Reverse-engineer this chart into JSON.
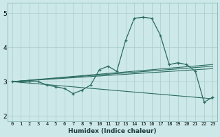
{
  "xlabel": "Humidex (Indice chaleur)",
  "ylabel": "",
  "bg_color": "#cce8e8",
  "line_color": "#2a6b5e",
  "grid_color": "#aacccc",
  "xlim": [
    -0.5,
    23.5
  ],
  "ylim": [
    1.85,
    5.3
  ],
  "yticks": [
    2,
    3,
    4,
    5
  ],
  "xticks": [
    0,
    1,
    2,
    3,
    4,
    5,
    6,
    7,
    8,
    9,
    10,
    11,
    12,
    13,
    14,
    15,
    16,
    17,
    18,
    19,
    20,
    21,
    22,
    23
  ],
  "line1_x": [
    0,
    1,
    2,
    3,
    4,
    5,
    6,
    7,
    8,
    9,
    10,
    11,
    12,
    13,
    14,
    15,
    16,
    17,
    18,
    19,
    20,
    21,
    22,
    23
  ],
  "line1_y": [
    3.0,
    3.0,
    3.0,
    3.0,
    2.9,
    2.85,
    2.8,
    2.65,
    2.75,
    2.9,
    3.35,
    3.45,
    3.3,
    4.2,
    4.85,
    4.88,
    4.85,
    4.35,
    3.5,
    3.55,
    3.5,
    3.3,
    2.4,
    2.55
  ],
  "line2_x": [
    0,
    23
  ],
  "line2_y": [
    3.0,
    3.5
  ],
  "line3_x": [
    0,
    23
  ],
  "line3_y": [
    3.0,
    3.45
  ],
  "line4_x": [
    0,
    23
  ],
  "line4_y": [
    3.0,
    3.38
  ],
  "line5_x": [
    0,
    23
  ],
  "line5_y": [
    3.0,
    2.5
  ]
}
